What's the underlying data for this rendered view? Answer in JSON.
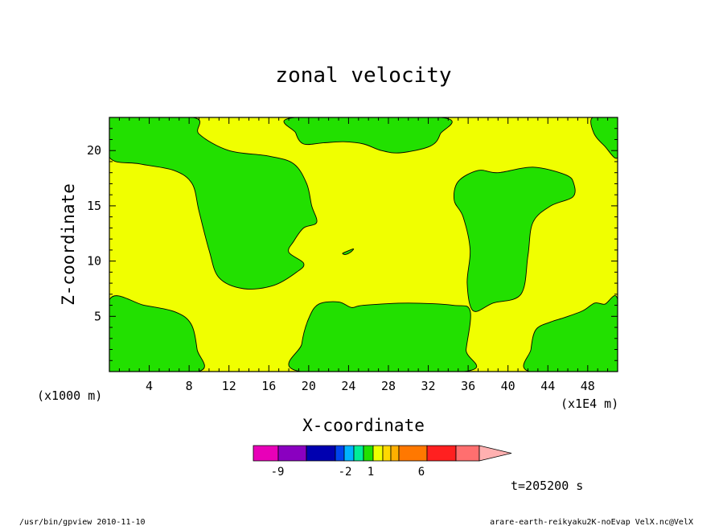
{
  "chart_data": {
    "type": "heatmap",
    "title": "zonal velocity",
    "xlabel": "X-coordinate",
    "ylabel": "Z-coordinate",
    "x_unit_label": "(x1E4 m)",
    "y_unit_label": "(x1000 m)",
    "xlim": [
      0,
      51
    ],
    "ylim": [
      0,
      23
    ],
    "x_ticks": [
      4,
      8,
      12,
      16,
      20,
      24,
      28,
      32,
      36,
      40,
      44,
      48
    ],
    "y_ticks": [
      5,
      10,
      15,
      20
    ],
    "fill_colors": {
      "background": "#f0ff00",
      "regions": "#22e000",
      "contour": "#000000"
    },
    "regions": [
      {
        "name": "green-top-left",
        "points": [
          [
            0,
            23
          ],
          [
            8.4,
            23
          ],
          [
            9,
            21.5
          ],
          [
            12,
            20
          ],
          [
            16,
            19.5
          ],
          [
            18.5,
            18.8
          ],
          [
            19.8,
            17
          ],
          [
            20.3,
            15
          ],
          [
            20.8,
            13.5
          ],
          [
            19.5,
            13
          ],
          [
            18.5,
            11.8
          ],
          [
            18,
            10.8
          ],
          [
            19.5,
            9.8
          ],
          [
            18.8,
            9
          ],
          [
            16.5,
            7.8
          ],
          [
            13.5,
            7.5
          ],
          [
            11,
            8.5
          ],
          [
            10,
            11
          ],
          [
            9,
            14.5
          ],
          [
            8.3,
            17
          ],
          [
            6.5,
            18.2
          ],
          [
            3,
            18.8
          ],
          [
            0,
            19.4
          ]
        ]
      },
      {
        "name": "green-top-middle",
        "points": [
          [
            18.6,
            23
          ],
          [
            33.3,
            23
          ],
          [
            33.2,
            21.5
          ],
          [
            32.2,
            20.4
          ],
          [
            29.2,
            19.8
          ],
          [
            27.3,
            20
          ],
          [
            25.5,
            20.6
          ],
          [
            23.5,
            20.8
          ],
          [
            21.5,
            20.7
          ],
          [
            19.5,
            20.6
          ],
          [
            18.7,
            21.6
          ]
        ]
      },
      {
        "name": "green-top-right",
        "points": [
          [
            48.5,
            23
          ],
          [
            51,
            23
          ],
          [
            51,
            19.4
          ],
          [
            49.7,
            20.4
          ],
          [
            48.6,
            21.6
          ]
        ]
      },
      {
        "name": "green-bottom-left",
        "points": [
          [
            0,
            0
          ],
          [
            8.9,
            0
          ],
          [
            8.8,
            2
          ],
          [
            8.2,
            4.3
          ],
          [
            6.6,
            5.4
          ],
          [
            3.5,
            6
          ],
          [
            0,
            6.5
          ]
        ]
      },
      {
        "name": "green-bottom-middle",
        "points": [
          [
            19.2,
            0
          ],
          [
            35.6,
            0
          ],
          [
            35.8,
            2
          ],
          [
            36.2,
            5.5
          ],
          [
            34.5,
            6
          ],
          [
            30,
            6.2
          ],
          [
            25.5,
            6
          ],
          [
            24.3,
            5.8
          ],
          [
            23,
            6.3
          ],
          [
            21,
            6.1
          ],
          [
            20,
            4.8
          ],
          [
            19.3,
            2.5
          ]
        ]
      },
      {
        "name": "green-right-middle",
        "points": [
          [
            37,
            18.2
          ],
          [
            39,
            18
          ],
          [
            42.5,
            18.5
          ],
          [
            45.8,
            17.8
          ],
          [
            46.6,
            17
          ],
          [
            46.5,
            15.8
          ],
          [
            44.3,
            15
          ],
          [
            42.5,
            13.5
          ],
          [
            42,
            10.5
          ],
          [
            41.3,
            7
          ],
          [
            38.5,
            6.2
          ],
          [
            36.5,
            5.5
          ],
          [
            35.9,
            8
          ],
          [
            36.2,
            11
          ],
          [
            35.5,
            14
          ],
          [
            34.6,
            15.5
          ],
          [
            35,
            17.2
          ]
        ]
      },
      {
        "name": "green-bottom-right",
        "points": [
          [
            42.2,
            0
          ],
          [
            51,
            0
          ],
          [
            51,
            6.5
          ],
          [
            49.7,
            6.1
          ],
          [
            48.7,
            6.2
          ],
          [
            47.5,
            5.5
          ],
          [
            45.7,
            4.9
          ],
          [
            44.3,
            4.5
          ],
          [
            42.8,
            3.8
          ],
          [
            42.3,
            2
          ]
        ]
      },
      {
        "name": "green-small-blob",
        "points": [
          [
            23.4,
            10.7
          ],
          [
            23.9,
            10.9
          ],
          [
            24.5,
            11.1
          ],
          [
            24.2,
            10.8
          ],
          [
            23.7,
            10.6
          ]
        ]
      }
    ]
  },
  "colorbar": {
    "colors": [
      "#e800b8",
      "#8a00c0",
      "#0000b0",
      "#0044ee",
      "#00b4ff",
      "#00ee98",
      "#22e000",
      "#f0ff00",
      "#ffd800",
      "#ffb000",
      "#ff7800",
      "#ff2020",
      "#ff6f6f",
      "#ffb0b0"
    ],
    "tick_labels": [
      "-9",
      "-2",
      "1",
      "6"
    ]
  },
  "time_label": "t=205200 s",
  "footer": {
    "left": "/usr/bin/gpview   2010-11-10",
    "right": "arare-earth-reikyaku2K-noEvap_VelX.nc@VelX"
  }
}
